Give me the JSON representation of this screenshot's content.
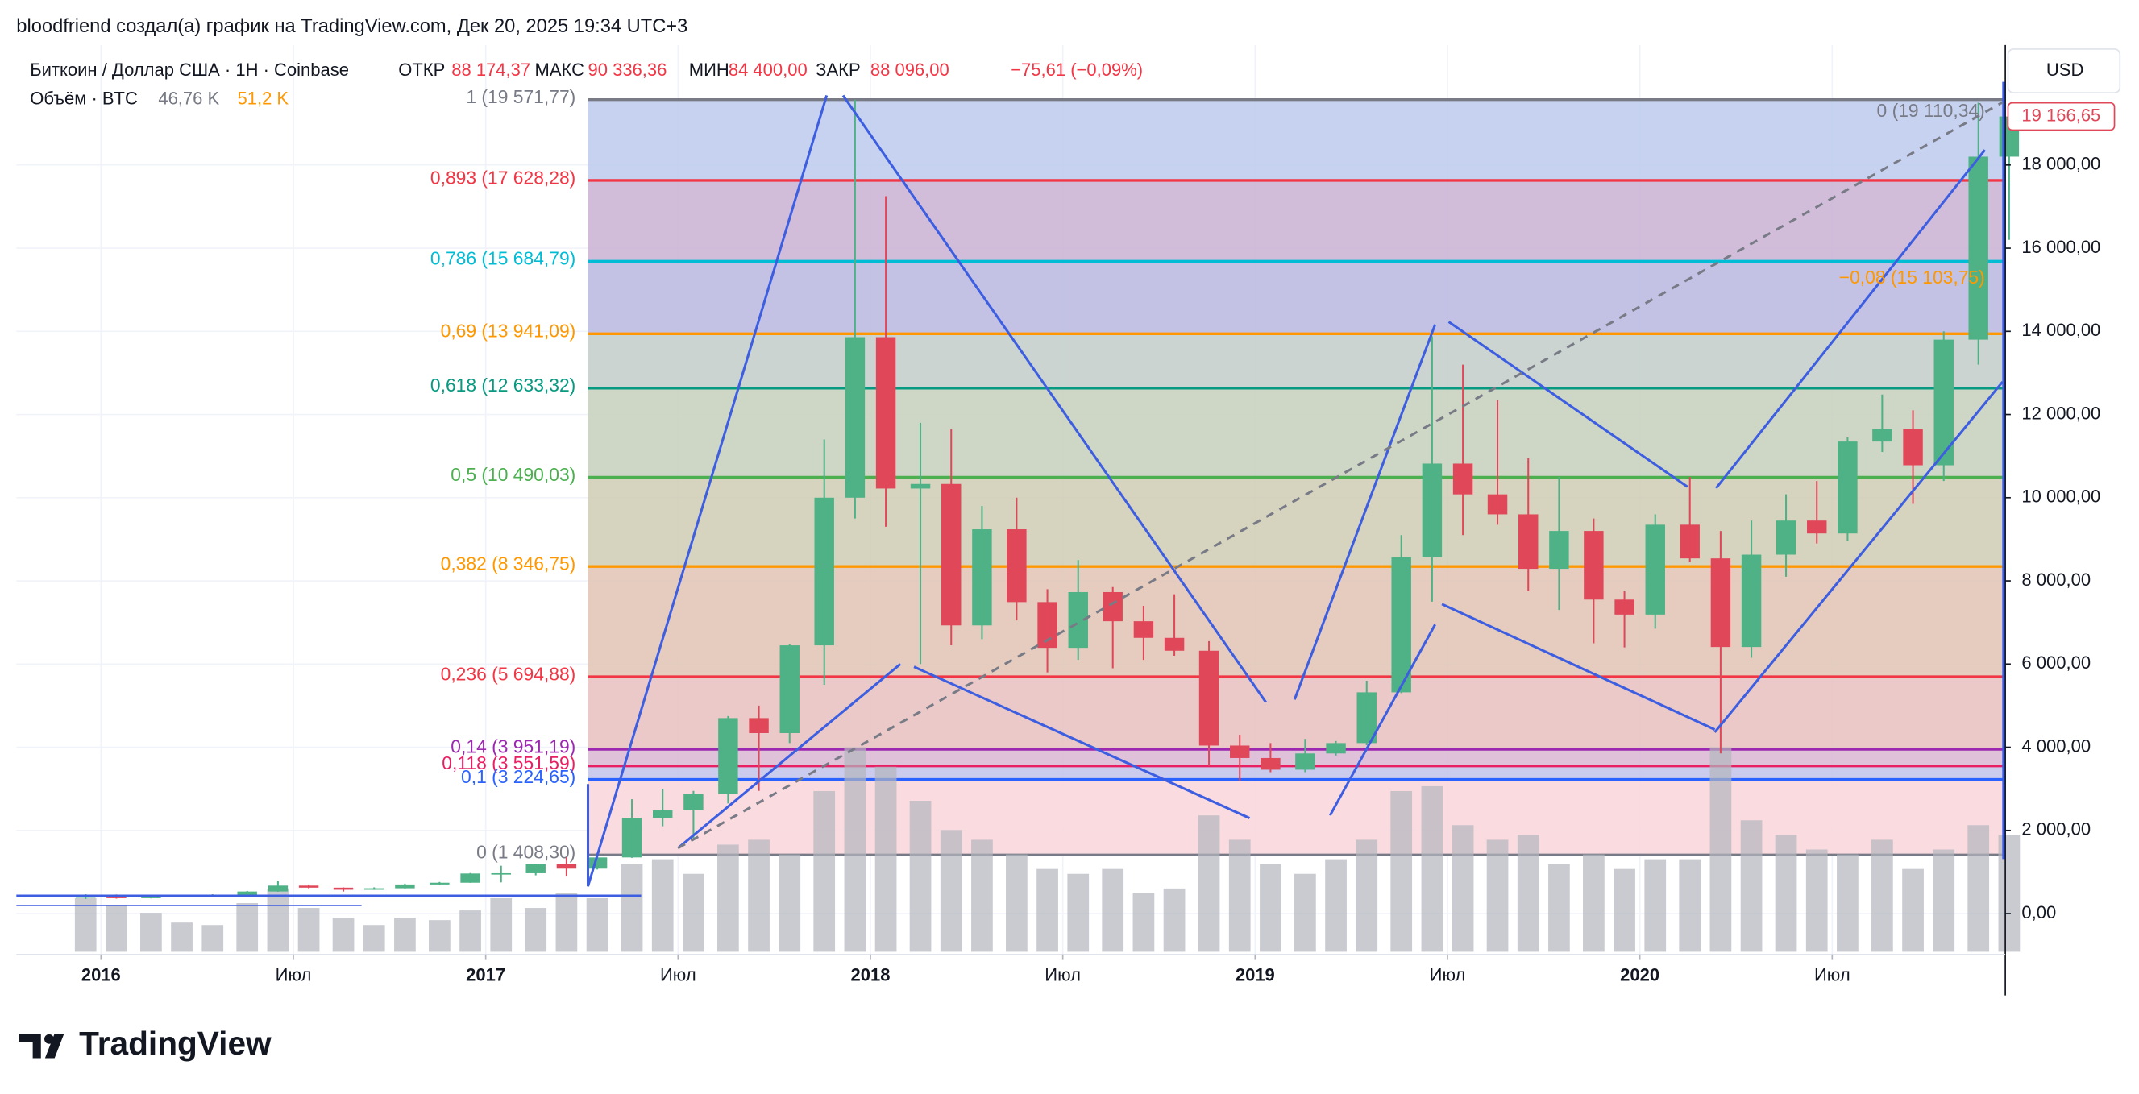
{
  "header": {
    "credit": "bloodfriend создал(а) график на TradingView.com, Дек 20, 2025 19:34 UTC+3"
  },
  "chart_data": {
    "type": "candlestick",
    "symbol": "Биткоин / Доллар США · 1Н · Coinbase",
    "ohlc": {
      "open_label": "ОТКР",
      "open": "88 174,37",
      "high_label": "МАКС",
      "high": "90 336,36",
      "low_label": "МИН",
      "low": "84 400,00",
      "close_label": "ЗАКР",
      "close": "88 096,00",
      "change": "−75,61 (−0,09%)"
    },
    "volume_legend": {
      "label": "Объём · BTC",
      "value": "46,76 K",
      "ma": "51,2 K"
    },
    "currency": "USD",
    "last_price": {
      "value": 19166.65,
      "label": "19 166,65"
    },
    "up_color": "#4fb286",
    "down_color": "#e0485a",
    "xlim": [
      2015.78,
      2020.95
    ],
    "xticks": [
      {
        "value": 2016,
        "label": "2016"
      },
      {
        "value": 2016.5,
        "label": "Июл"
      },
      {
        "value": 2017,
        "label": "2017"
      },
      {
        "value": 2017.5,
        "label": "Июл"
      },
      {
        "value": 2018,
        "label": "2018"
      },
      {
        "value": 2018.5,
        "label": "Июл"
      },
      {
        "value": 2019,
        "label": "2019"
      },
      {
        "value": 2019.5,
        "label": "Июл"
      },
      {
        "value": 2020,
        "label": "2020"
      },
      {
        "value": 2020.5,
        "label": "Июл"
      }
    ],
    "ylim": [
      -984,
      20885
    ],
    "yticks": [
      {
        "value": 0,
        "label": "0,00"
      },
      {
        "value": 2000,
        "label": "2 000,00"
      },
      {
        "value": 4000,
        "label": "4 000,00"
      },
      {
        "value": 6000,
        "label": "6 000,00"
      },
      {
        "value": 8000,
        "label": "8 000,00"
      },
      {
        "value": 10000,
        "label": "10 000,00"
      },
      {
        "value": 12000,
        "label": "12 000,00"
      },
      {
        "value": 14000,
        "label": "14 000,00"
      },
      {
        "value": 16000,
        "label": "16 000,00"
      },
      {
        "value": 18000,
        "label": "18 000,00"
      }
    ],
    "grid": true,
    "x": [
      2015.96,
      2016.04,
      2016.13,
      2016.21,
      2016.29,
      2016.38,
      2016.46,
      2016.54,
      2016.63,
      2016.71,
      2016.79,
      2016.88,
      2016.96,
      2017.04,
      2017.13,
      2017.21,
      2017.29,
      2017.38,
      2017.46,
      2017.54,
      2017.63,
      2017.71,
      2017.79,
      2017.88,
      2017.96,
      2018.04,
      2018.13,
      2018.21,
      2018.29,
      2018.38,
      2018.46,
      2018.54,
      2018.63,
      2018.71,
      2018.79,
      2018.88,
      2018.96,
      2019.04,
      2019.13,
      2019.21,
      2019.29,
      2019.38,
      2019.46,
      2019.54,
      2019.63,
      2019.71,
      2019.79,
      2019.88,
      2019.96,
      2020.04,
      2020.13,
      2020.21,
      2020.29,
      2020.38,
      2020.46,
      2020.54,
      2020.63,
      2020.71,
      2020.79,
      2020.88,
      2020.96
    ],
    "open": [
      380,
      430,
      370,
      437,
      416,
      448,
      531,
      673,
      624,
      573,
      609,
      700,
      742,
      963,
      970,
      1190,
      1080,
      1350,
      2300,
      2480,
      2870,
      4700,
      4340,
      6450,
      10000,
      13860,
      10220,
      10330,
      6930,
      9240,
      7490,
      6390,
      7730,
      7030,
      6630,
      6320,
      4040,
      3740,
      3460,
      3850,
      4100,
      5320,
      8570,
      10820,
      10080,
      9600,
      8290,
      9200,
      7550,
      7190,
      9350,
      8540,
      6410,
      8630,
      9450,
      9140,
      11350,
      11650,
      10780,
      13800,
      18200
    ],
    "high": [
      465,
      460,
      445,
      440,
      465,
      545,
      780,
      700,
      630,
      630,
      720,
      760,
      975,
      1150,
      1200,
      1350,
      1380,
      2750,
      3000,
      2950,
      4750,
      5000,
      6470,
      11400,
      19571.77,
      17250,
      11800,
      11650,
      9800,
      10000,
      7800,
      8500,
      7850,
      7400,
      7680,
      6550,
      4300,
      4100,
      4200,
      4150,
      5600,
      9100,
      13880,
      13200,
      12350,
      10950,
      10500,
      9500,
      7750,
      9600,
      10500,
      9200,
      9450,
      10080,
      10400,
      11450,
      12480,
      12100,
      14000,
      19500,
      19400
    ],
    "low": [
      350,
      360,
      365,
      405,
      410,
      440,
      525,
      610,
      530,
      570,
      605,
      690,
      740,
      750,
      920,
      890,
      1060,
      1340,
      2100,
      1800,
      2650,
      2950,
      4100,
      5500,
      9500,
      9300,
      6000,
      6450,
      6600,
      7050,
      5800,
      6100,
      5900,
      6100,
      6200,
      3550,
      3200,
      3400,
      3400,
      3800,
      4050,
      5300,
      7500,
      9100,
      9350,
      7750,
      7300,
      6500,
      6400,
      6850,
      8450,
      3850,
      6150,
      8100,
      8900,
      8950,
      11100,
      9850,
      10400,
      13200,
      16200
    ],
    "close": [
      430,
      370,
      437,
      416,
      448,
      531,
      673,
      624,
      573,
      609,
      700,
      742,
      963,
      970,
      1190,
      1080,
      1350,
      2300,
      2480,
      2870,
      4700,
      4340,
      6450,
      10000,
      13860,
      10220,
      10330,
      6930,
      9240,
      7490,
      6390,
      7730,
      7030,
      6630,
      6320,
      4040,
      3740,
      3460,
      3850,
      4100,
      5320,
      8570,
      10820,
      10080,
      9600,
      8290,
      9200,
      7550,
      7190,
      9350,
      8540,
      6410,
      8630,
      9450,
      9140,
      11350,
      11650,
      10780,
      13800,
      18200,
      19166.65
    ],
    "volume": [
      110,
      95,
      80,
      60,
      55,
      100,
      130,
      90,
      70,
      55,
      70,
      65,
      85,
      110,
      90,
      120,
      110,
      180,
      190,
      160,
      220,
      230,
      200,
      330,
      420,
      380,
      310,
      250,
      230,
      200,
      170,
      160,
      170,
      120,
      130,
      280,
      230,
      180,
      160,
      190,
      230,
      330,
      340,
      260,
      230,
      240,
      180,
      200,
      170,
      190,
      190,
      420,
      270,
      240,
      210,
      200,
      230,
      170,
      210,
      260,
      240
    ],
    "volume_color": "#b2b5be",
    "fib_levels": [
      {
        "value": 19571.77,
        "label": "1 (19 571,77)",
        "color": "#787b86",
        "fill": "#bccaec"
      },
      {
        "value": 17628.28,
        "label": "0,893 (17 628,28)",
        "color": "#f23645",
        "fill": "#c9b1d3"
      },
      {
        "value": 15684.79,
        "label": "0,786 (15 684,79)",
        "color": "#00bcd4",
        "fill": "#b9b7e0"
      },
      {
        "value": 13941.09,
        "label": "0,69 (13 941,09)",
        "color": "#ff9800",
        "fill": "#c2cdc8"
      },
      {
        "value": 12633.32,
        "label": "0,618 (12 633,32)",
        "color": "#089981",
        "fill": "#c6cfbc"
      },
      {
        "value": 10490.03,
        "label": "0,5 (10 490,03)",
        "color": "#4caf50",
        "fill": "#cfcbb3"
      },
      {
        "value": 8346.75,
        "label": "0,382 (8 346,75)",
        "color": "#ff9800",
        "fill": "#e0c3b4"
      },
      {
        "value": 5694.88,
        "label": "0,236 (5 694,88)",
        "color": "#f23645",
        "fill": "#e6bfbe"
      },
      {
        "value": 3951.19,
        "label": "0,14 (3 951,19)",
        "color": "#9c27b0",
        "fill": "#d9b6d4"
      },
      {
        "value": 3551.59,
        "label": "0,118 (3 551,59)",
        "color": "#e91e63",
        "fill": "#c2c2ea"
      },
      {
        "value": 3224.65,
        "label": "0,1 (3 224,65)",
        "color": "#2962ff",
        "fill": "#f9d6da"
      },
      {
        "value": 1408.3,
        "label": "0 (1 408,30)",
        "color": "#787b86"
      }
    ],
    "extension_labels": [
      {
        "value": 19110.34,
        "label": "0 (19 110,34)",
        "color": "#787b86"
      },
      {
        "value": 15103.75,
        "label": "−0,08 (15 103,75)",
        "color": "#ff9800"
      }
    ]
  },
  "footer": {
    "logo": "TradingView"
  }
}
